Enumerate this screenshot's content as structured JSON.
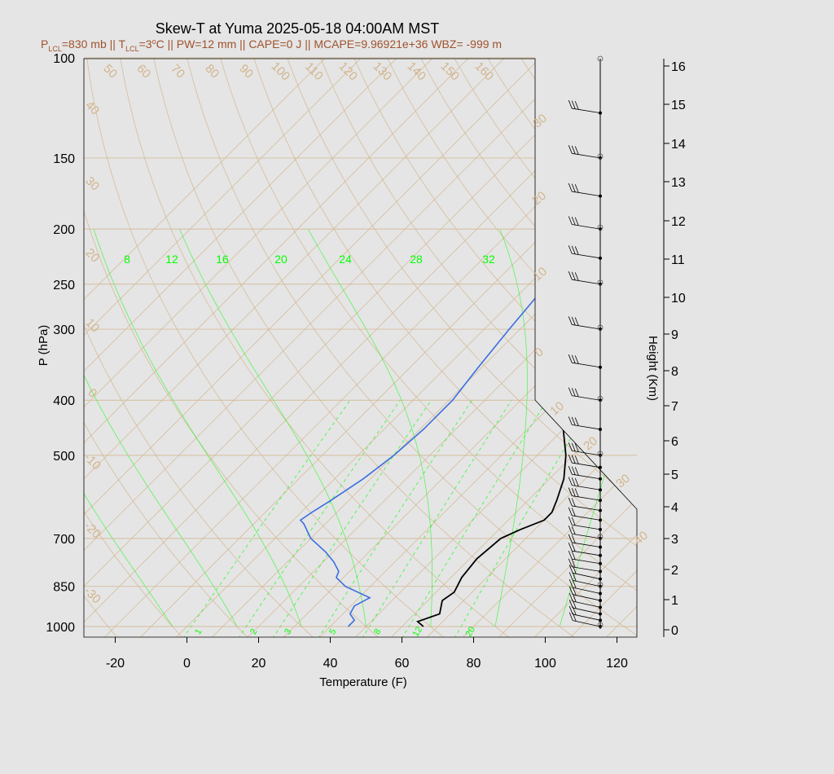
{
  "title": "Skew-T at Yuma 2025-05-18 04:00AM MST",
  "subtitle": {
    "p_lcl_label": "P",
    "p_lcl_sub": "LCL",
    "p_lcl_val": "=830 mb || T",
    "t_lcl_sub": "LCL",
    "t_lcl_val": "=3",
    "deg": "o",
    "rest": "C || PW=12 mm || CAPE=0 J || MCAPE=9.96921e+36 WBZ= -999 m"
  },
  "colors": {
    "temperature": "#000000",
    "dewpoint": "#3b6fdf",
    "isotherm": "#d2b48c",
    "mixing_ratio": "#00ff00",
    "frame": "#000000",
    "background": "#e5e5e5"
  },
  "chart_data": {
    "type": "line",
    "x_axis": {
      "label": "Temperature (F)",
      "ticks": [
        -20,
        0,
        20,
        40,
        60,
        80,
        100,
        120
      ],
      "range": [
        -29,
        125
      ]
    },
    "y_axis": {
      "label": "P (hPa)",
      "scale": "log",
      "ticks": [
        100,
        150,
        200,
        250,
        300,
        400,
        500,
        700,
        850,
        1000
      ],
      "range": [
        100,
        1050
      ]
    },
    "height_axis": {
      "label": "Height (Km)",
      "ticks": [
        0,
        1,
        2,
        3,
        4,
        5,
        6,
        7,
        8,
        9,
        10,
        11,
        12,
        13,
        14,
        15,
        16
      ]
    },
    "isotherm_labels": {
      "top": [
        "50",
        "60",
        "70",
        "80",
        "90",
        "100",
        "110",
        "120",
        "130",
        "140",
        "150",
        "160"
      ],
      "left": [
        "40",
        "30",
        "20",
        "10",
        "0",
        "-10",
        "-20",
        "-30"
      ],
      "right": [
        "30",
        "20",
        "10",
        "0",
        "10",
        "20",
        "30",
        "40"
      ]
    },
    "mixing_ratio_labels": {
      "top": [
        "8",
        "12",
        "16",
        "20",
        "24",
        "28",
        "32"
      ],
      "bottom": [
        "1",
        "2",
        "3",
        "5",
        "8",
        "12",
        "20"
      ]
    },
    "series": [
      {
        "name": "temperature",
        "points": [
          [
            66,
            1000
          ],
          [
            63,
            980
          ],
          [
            67,
            950
          ],
          [
            64,
            900
          ],
          [
            65,
            870
          ],
          [
            63,
            820
          ],
          [
            62,
            760
          ],
          [
            63,
            700
          ],
          [
            66,
            675
          ],
          [
            70,
            650
          ],
          [
            70,
            630
          ],
          [
            68,
            600
          ],
          [
            64,
            550
          ],
          [
            58,
            500
          ],
          [
            50,
            450
          ],
          [
            42,
            400
          ],
          [
            33,
            350
          ],
          [
            24,
            300
          ],
          [
            17,
            250
          ],
          [
            14,
            230
          ],
          [
            12,
            200
          ],
          [
            13,
            170
          ],
          [
            20,
            140
          ],
          [
            33,
            118
          ],
          [
            48,
            100
          ]
        ]
      },
      {
        "name": "dewpoint",
        "points": [
          [
            45,
            1000
          ],
          [
            45,
            975
          ],
          [
            42,
            950
          ],
          [
            41,
            920
          ],
          [
            43,
            890
          ],
          [
            33,
            850
          ],
          [
            28,
            820
          ],
          [
            27,
            800
          ],
          [
            23,
            770
          ],
          [
            18,
            740
          ],
          [
            10,
            700
          ],
          [
            4,
            660
          ],
          [
            2,
            650
          ],
          [
            3,
            630
          ],
          [
            5,
            600
          ],
          [
            8,
            550
          ],
          [
            10,
            500
          ],
          [
            11,
            450
          ],
          [
            11,
            400
          ],
          [
            9,
            350
          ],
          [
            7,
            300
          ],
          [
            5,
            250
          ],
          [
            4,
            200
          ],
          [
            3,
            170
          ],
          [
            2,
            140
          ],
          [
            10,
            125
          ],
          [
            25,
            100
          ]
        ]
      }
    ],
    "wind_barbs": {
      "levels_hpa": [
        1000,
        975,
        950,
        925,
        900,
        875,
        850,
        825,
        800,
        775,
        750,
        725,
        700,
        675,
        650,
        625,
        600,
        575,
        550,
        525,
        500,
        450,
        400,
        350,
        300,
        250,
        225,
        200,
        175,
        150,
        125
      ]
    }
  }
}
